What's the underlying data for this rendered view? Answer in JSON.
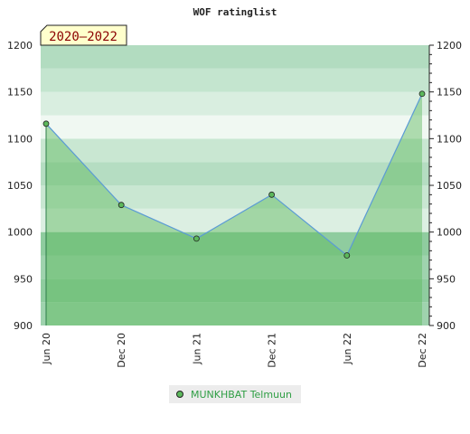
{
  "chart_data": {
    "type": "area",
    "title": "WOF ratinglist",
    "period": "2020–2022",
    "x": [
      "Jun 20",
      "Dec 20",
      "Jun 21",
      "Dec 21",
      "Jun 22",
      "Dec 22"
    ],
    "series": [
      {
        "name": "MUNKHBAT Telmuun",
        "values": [
          1116,
          1029,
          993,
          1040,
          975,
          1148
        ]
      }
    ],
    "ylim": [
      900,
      1200
    ],
    "yticks": [
      900,
      950,
      1000,
      1050,
      1100,
      1150,
      1200
    ],
    "xlabel": "",
    "ylabel": "",
    "grid": true,
    "legend": "bottom-center",
    "colors": {
      "line": "#5b9bd5",
      "marker": "#5cb85c",
      "fill": "#5cb85c",
      "legend_text": "#2f9e44"
    }
  }
}
